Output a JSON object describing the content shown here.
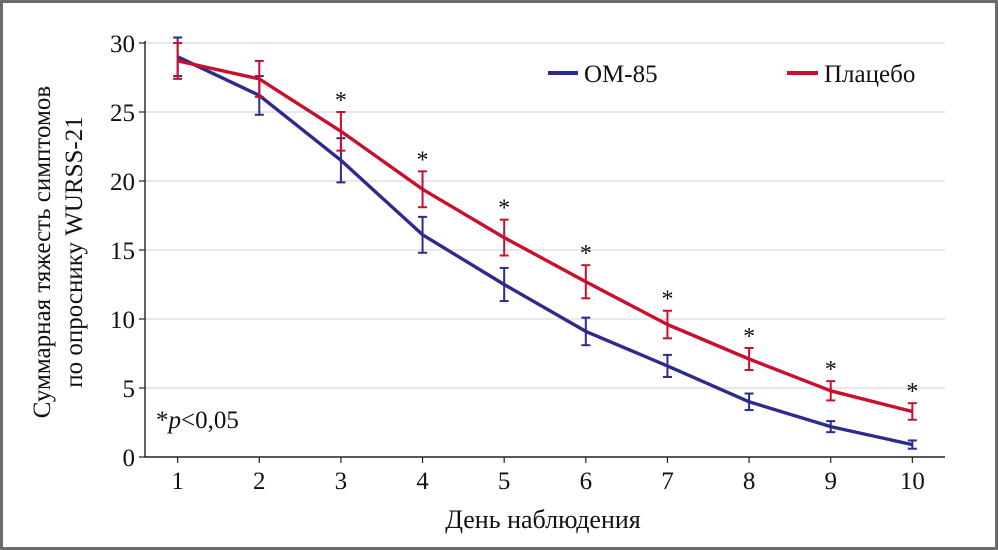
{
  "chart_data": {
    "type": "line",
    "title": "",
    "xlabel": "День наблюдения",
    "ylabel_line1": "Суммарная тяжесть симптомов",
    "ylabel_line2": "по опроснику WURSS-21",
    "x": [
      1,
      2,
      3,
      4,
      5,
      6,
      7,
      8,
      9,
      10
    ],
    "xlim": [
      1,
      10
    ],
    "ylim": [
      0,
      30
    ],
    "yticks": [
      0,
      5,
      10,
      15,
      20,
      25,
      30
    ],
    "grid": "horizontal",
    "legend_position": "top-right",
    "annotation": {
      "star": "*",
      "p": "p",
      "rest": "<0,05"
    },
    "significance_marker": "*",
    "significant_days": [
      3,
      4,
      5,
      6,
      7,
      8,
      9,
      10
    ],
    "series": [
      {
        "name": "ОМ-85",
        "color": "#2e2a8f",
        "values": [
          29.0,
          26.2,
          21.5,
          16.1,
          12.5,
          9.1,
          6.6,
          4.0,
          2.2,
          0.9
        ],
        "err": [
          1.4,
          1.4,
          1.6,
          1.3,
          1.2,
          1.0,
          0.8,
          0.6,
          0.4,
          0.3
        ]
      },
      {
        "name": "Плацебо",
        "color": "#c8102e",
        "values": [
          28.7,
          27.4,
          23.6,
          19.4,
          15.9,
          12.7,
          9.6,
          7.1,
          4.8,
          3.3
        ],
        "err": [
          1.3,
          1.3,
          1.4,
          1.3,
          1.3,
          1.2,
          1.0,
          0.8,
          0.7,
          0.6
        ]
      }
    ]
  }
}
